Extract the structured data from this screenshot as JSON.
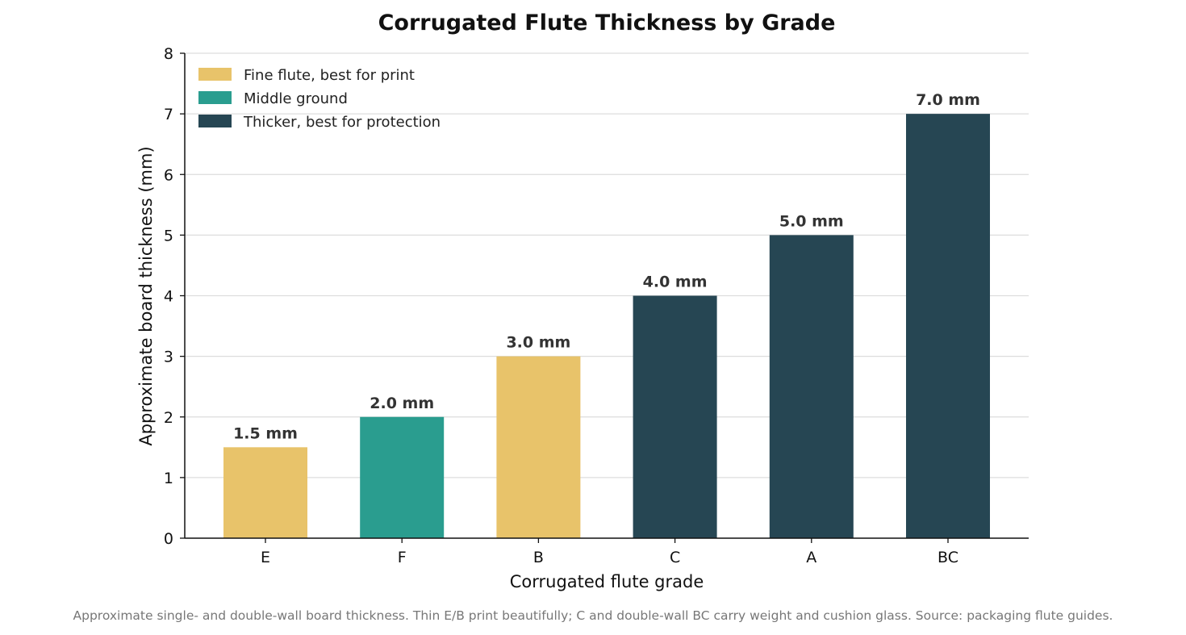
{
  "chart_data": {
    "type": "bar",
    "title": "Corrugated Flute Thickness by Grade",
    "xlabel": "Corrugated flute grade",
    "ylabel": "Approximate board thickness (mm)",
    "categories": [
      "E",
      "F",
      "B",
      "C",
      "A",
      "BC"
    ],
    "values": [
      1.5,
      2.0,
      3.0,
      4.0,
      5.0,
      7.0
    ],
    "data_labels": [
      "1.5 mm",
      "2.0 mm",
      "3.0 mm",
      "4.0 mm",
      "5.0 mm",
      "7.0 mm"
    ],
    "bar_groups": [
      "fine",
      "middle",
      "fine",
      "thick",
      "thick",
      "thick"
    ],
    "ylim": [
      0,
      8
    ],
    "yticks": [
      "0",
      "1",
      "2",
      "3",
      "4",
      "5",
      "6",
      "7",
      "8"
    ],
    "grid": "horizontal",
    "legend_position": "top-left",
    "legend": [
      {
        "key": "fine",
        "label": "Fine flute, best for print",
        "color": "#E8C36A"
      },
      {
        "key": "middle",
        "label": "Middle ground",
        "color": "#2A9D8F"
      },
      {
        "key": "thick",
        "label": "Thicker, best for protection",
        "color": "#264653"
      }
    ],
    "caption": "Approximate single- and double-wall board thickness. Thin E/B print beautifully; C and double-wall BC carry weight and cushion glass. Source: packaging flute guides."
  }
}
